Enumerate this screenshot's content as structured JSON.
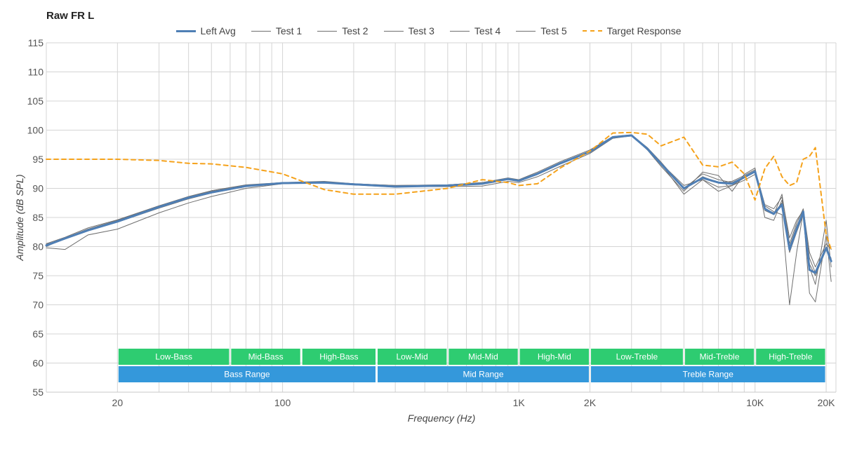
{
  "chart_data": {
    "type": "line",
    "title": "Raw FR L",
    "xlabel": "Frequency (Hz)",
    "ylabel": "Amplitude (dB SPL)",
    "x_scale": "log",
    "xlim": [
      10,
      22000
    ],
    "ylim": [
      55,
      115
    ],
    "grid": true,
    "legend_position": "top-center",
    "y_ticks": [
      55,
      60,
      65,
      70,
      75,
      80,
      85,
      90,
      95,
      100,
      105,
      110,
      115
    ],
    "x_ticks": [
      {
        "value": 20,
        "label": "20"
      },
      {
        "value": 100,
        "label": "100"
      },
      {
        "value": 1000,
        "label": "1K"
      },
      {
        "value": 2000,
        "label": "2K"
      },
      {
        "value": 10000,
        "label": "10K"
      },
      {
        "value": 20000,
        "label": "20K"
      }
    ],
    "series": [
      {
        "name": "Test 1",
        "color": "#6f6f6f",
        "width": 1,
        "dash": "",
        "x": [
          10,
          12,
          15,
          20,
          30,
          40,
          50,
          70,
          100,
          150,
          200,
          300,
          500,
          700,
          900,
          1000,
          1200,
          1500,
          2000,
          2500,
          3000,
          3500,
          4000,
          5000,
          6000,
          7000,
          8000,
          9000,
          10000,
          11000,
          12000,
          13000,
          14000,
          15000,
          16000,
          17000,
          18000,
          20000,
          21000
        ],
        "y": [
          80,
          81.5,
          83,
          84.5,
          87,
          88.5,
          89.5,
          90.5,
          91,
          91.2,
          90.8,
          90.5,
          90.6,
          91,
          91.6,
          91.4,
          92.6,
          94.4,
          96.4,
          98.7,
          99.2,
          97,
          94.5,
          90,
          92.5,
          91.5,
          91,
          92,
          93,
          86.2,
          85.5,
          89,
          80.5,
          84,
          86.5,
          79,
          76.5,
          80.5,
          79.5
        ]
      },
      {
        "name": "Test 2",
        "color": "#6f6f6f",
        "width": 1,
        "dash": "",
        "x": [
          10,
          12,
          15,
          20,
          30,
          40,
          50,
          70,
          100,
          150,
          200,
          300,
          500,
          700,
          900,
          1000,
          1200,
          1500,
          2000,
          2500,
          3000,
          3500,
          4000,
          5000,
          6000,
          7000,
          8000,
          9000,
          10000,
          11000,
          12000,
          13000,
          14000,
          15000,
          16000,
          17000,
          18000,
          20000,
          21000
        ],
        "y": [
          79.8,
          79.5,
          82,
          83,
          85.8,
          87.5,
          88.6,
          90,
          90.8,
          91,
          90.7,
          90.3,
          90.3,
          90.4,
          91.2,
          91,
          92,
          93.8,
          96,
          98.6,
          99,
          96.9,
          94.2,
          89,
          91.5,
          90.2,
          90.5,
          91.4,
          92.4,
          87,
          86,
          85.5,
          70,
          79,
          86,
          72,
          70.5,
          82,
          74
        ]
      },
      {
        "name": "Test 3",
        "color": "#6f6f6f",
        "width": 1,
        "dash": "",
        "x": [
          10,
          12,
          15,
          20,
          30,
          40,
          50,
          70,
          100,
          150,
          200,
          300,
          500,
          700,
          900,
          1000,
          1200,
          1500,
          2000,
          2500,
          3000,
          3500,
          4000,
          5000,
          6000,
          7000,
          8000,
          9000,
          10000,
          11000,
          12000,
          13000,
          14000,
          15000,
          16000,
          17000,
          18000,
          20000,
          21000
        ],
        "y": [
          80.4,
          81.3,
          82.8,
          84.2,
          86.8,
          88.2,
          89.2,
          90.3,
          90.9,
          91,
          90.6,
          90.2,
          90.5,
          90.8,
          91.6,
          91.3,
          92.4,
          94.2,
          96.2,
          98.8,
          99.1,
          96.6,
          93.8,
          89.5,
          92.8,
          92.2,
          89.5,
          92.4,
          93.5,
          85,
          84.5,
          88,
          79,
          82.5,
          85.5,
          76.5,
          73.5,
          84.5,
          76.5
        ]
      },
      {
        "name": "Test 4",
        "color": "#6f6f6f",
        "width": 1,
        "dash": "",
        "x": [
          10,
          12,
          15,
          20,
          30,
          40,
          50,
          70,
          100,
          150,
          200,
          300,
          500,
          700,
          900,
          1000,
          1200,
          1500,
          2000,
          2500,
          3000,
          3500,
          4000,
          5000,
          6000,
          7000,
          8000,
          9000,
          10000,
          11000,
          12000,
          13000,
          14000,
          15000,
          16000,
          17000,
          18000,
          20000,
          21000
        ],
        "y": [
          80.5,
          81.6,
          83.2,
          84.6,
          87,
          88.6,
          89.6,
          90.6,
          91,
          91.1,
          90.8,
          90.5,
          90.6,
          91,
          91.8,
          91.5,
          92.8,
          94.6,
          96.6,
          98.9,
          99.2,
          96.9,
          94.4,
          89.8,
          92,
          91,
          91.2,
          92.2,
          93.2,
          87.2,
          86.5,
          88.5,
          81.5,
          84.5,
          86.2,
          78,
          75.5,
          79.5,
          78
        ]
      },
      {
        "name": "Test 5",
        "color": "#6f6f6f",
        "width": 1,
        "dash": "",
        "x": [
          10,
          12,
          15,
          20,
          30,
          40,
          50,
          70,
          100,
          150,
          200,
          300,
          500,
          700,
          900,
          1000,
          1200,
          1500,
          2000,
          2500,
          3000,
          3500,
          4000,
          5000,
          6000,
          7000,
          8000,
          9000,
          10000,
          11000,
          12000,
          13000,
          14000,
          15000,
          16000,
          17000,
          18000,
          20000,
          21000
        ],
        "y": [
          80.3,
          81.3,
          82.8,
          84.2,
          86.6,
          88.2,
          89.2,
          90.4,
          90.8,
          91,
          90.6,
          90.3,
          90.5,
          90.9,
          91.5,
          91.2,
          92.4,
          94.2,
          96.3,
          98.6,
          99.1,
          96.8,
          94.3,
          90.5,
          91.5,
          89.5,
          90.5,
          91.8,
          92.8,
          86.5,
          85.8,
          87.5,
          80,
          83.5,
          86,
          77,
          75,
          79.5,
          77.8
        ]
      },
      {
        "name": "Left Avg",
        "color": "#4f7fb5",
        "width": 3,
        "dash": "",
        "x": [
          10,
          12,
          15,
          20,
          30,
          40,
          50,
          70,
          100,
          150,
          200,
          300,
          500,
          700,
          900,
          1000,
          1200,
          1500,
          2000,
          2500,
          3000,
          3500,
          4000,
          5000,
          6000,
          7000,
          8000,
          9000,
          10000,
          11000,
          12000,
          13000,
          14000,
          15000,
          16000,
          17000,
          18000,
          20000,
          21000
        ],
        "y": [
          80.2,
          81.4,
          82.8,
          84.3,
          86.8,
          88.4,
          89.3,
          90.4,
          90.9,
          91,
          90.7,
          90.3,
          90.5,
          90.8,
          91.6,
          91.3,
          92.5,
          94.3,
          96.3,
          98.8,
          99.1,
          96.8,
          94.2,
          90,
          91.8,
          91,
          90.8,
          91.9,
          92.9,
          86.5,
          85.6,
          87.2,
          79.5,
          83,
          86,
          76,
          75.5,
          79.8,
          77.5
        ]
      },
      {
        "name": "Target Response",
        "color": "#f5a21b",
        "width": 2,
        "dash": "6,5",
        "x": [
          10,
          20,
          30,
          40,
          50,
          70,
          100,
          150,
          200,
          300,
          500,
          700,
          900,
          1000,
          1200,
          1500,
          2000,
          2500,
          3000,
          3500,
          4000,
          5000,
          6000,
          7000,
          8000,
          9000,
          10000,
          11000,
          12000,
          13000,
          14000,
          15000,
          16000,
          17000,
          18000,
          20000,
          21000
        ],
        "y": [
          95,
          95,
          94.8,
          94.3,
          94.2,
          93.6,
          92.5,
          89.8,
          89,
          89,
          90,
          91.5,
          91,
          90.5,
          90.8,
          93.5,
          96.4,
          99.5,
          99.6,
          99.3,
          97.3,
          98.8,
          94,
          93.7,
          94.5,
          92.5,
          88,
          93.4,
          95.5,
          92,
          90.5,
          91,
          95,
          95.5,
          97,
          82,
          79.5
        ]
      }
    ],
    "bands_top": [
      {
        "label": "Low-Bass",
        "from": 20,
        "to": 60,
        "color": "#2ecc71"
      },
      {
        "label": "Mid-Bass",
        "from": 60,
        "to": 120,
        "color": "#2ecc71"
      },
      {
        "label": "High-Bass",
        "from": 120,
        "to": 250,
        "color": "#2ecc71"
      },
      {
        "label": "Low-Mid",
        "from": 250,
        "to": 500,
        "color": "#2ecc71"
      },
      {
        "label": "Mid-Mid",
        "from": 500,
        "to": 1000,
        "color": "#2ecc71"
      },
      {
        "label": "High-Mid",
        "from": 1000,
        "to": 2000,
        "color": "#2ecc71"
      },
      {
        "label": "Low-Treble",
        "from": 2000,
        "to": 5000,
        "color": "#2ecc71"
      },
      {
        "label": "Mid-Treble",
        "from": 5000,
        "to": 10000,
        "color": "#2ecc71"
      },
      {
        "label": "High-Treble",
        "from": 10000,
        "to": 20000,
        "color": "#2ecc71"
      }
    ],
    "bands_bottom": [
      {
        "label": "Bass Range",
        "from": 20,
        "to": 250,
        "color": "#3498db"
      },
      {
        "label": "Mid Range",
        "from": 250,
        "to": 2000,
        "color": "#3498db"
      },
      {
        "label": "Treble Range",
        "from": 2000,
        "to": 20000,
        "color": "#3498db"
      }
    ]
  }
}
